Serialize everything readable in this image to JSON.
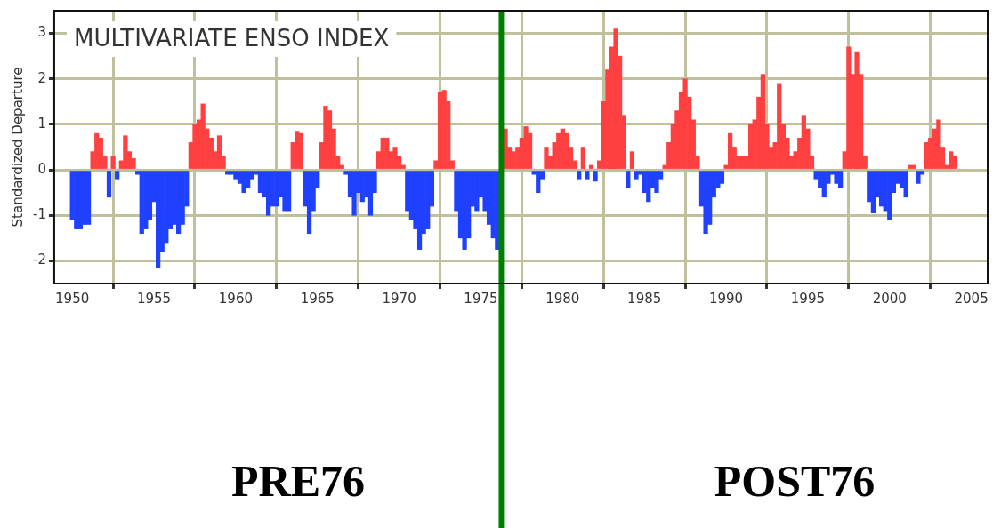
{
  "chart_data": {
    "type": "bar",
    "title": "MULTIVARIATE ENSO INDEX",
    "ylabel": "Standardized Departure",
    "annotations": [
      "PRE76",
      "POST76"
    ],
    "xlim": [
      1948.9,
      2006
    ],
    "xticks": [
      1950,
      1955,
      1960,
      1965,
      1970,
      1975,
      1980,
      1985,
      1990,
      1995,
      2000,
      2005
    ],
    "ylim": [
      -2.5,
      3.5
    ],
    "yticks": [
      -2,
      -1,
      0,
      1,
      2,
      3
    ],
    "grid": true,
    "legend": false,
    "ref_lines": [
      {
        "axis": "x",
        "value": 1976.25,
        "color": "#008000"
      }
    ],
    "series": [
      {
        "color": "#ff4040",
        "x": [
          1951.25,
          1951.5,
          1951.75,
          1952,
          1952.5,
          1953,
          1953.25,
          1953.5,
          1953.75,
          1957.25,
          1957.5,
          1957.75,
          1958,
          1958.25,
          1958.5,
          1958.75,
          1959,
          1959.25,
          1963.5,
          1963.75,
          1964,
          1965.25,
          1965.5,
          1965.75,
          1966,
          1966.25,
          1966.5,
          1968.75,
          1969,
          1969.25,
          1969.5,
          1969.75,
          1970,
          1970.25,
          1972.25,
          1972.5,
          1972.75,
          1973,
          1973.25,
          1976.5,
          1976.75,
          1977,
          1977.25,
          1977.5,
          1977.75,
          1978,
          1979,
          1979.25,
          1979.5,
          1979.75,
          1980,
          1980.25,
          1980.5,
          1980.75,
          1981.25,
          1981.75,
          1982.25,
          1982.5,
          1982.75,
          1983,
          1983.25,
          1983.5,
          1983.75,
          1984.25,
          1986.25,
          1986.5,
          1986.75,
          1987,
          1987.25,
          1987.5,
          1987.75,
          1988,
          1988.25,
          1990,
          1990.25,
          1990.5,
          1990.75,
          1991,
          1991.25,
          1991.5,
          1991.75,
          1992,
          1992.25,
          1992.5,
          1992.75,
          1993,
          1993.25,
          1993.5,
          1993.75,
          1994,
          1994.25,
          1994.5,
          1994.75,
          1995,
          1995.25,
          1997.25,
          1997.5,
          1997.75,
          1998,
          1998.25,
          1998.5,
          2001.25,
          2001.5,
          2002.25,
          2002.5,
          2002.75,
          2003,
          2003.25,
          2003.5,
          2003.75,
          2004
        ],
        "values": [
          0.4,
          0.8,
          0.7,
          0.3,
          0.3,
          0.2,
          0.75,
          0.4,
          0.25,
          0.6,
          1.0,
          1.1,
          1.45,
          0.9,
          0.7,
          0.4,
          0.75,
          0.3,
          0.6,
          0.85,
          0.8,
          0.6,
          1.4,
          1.3,
          0.9,
          0.3,
          0.1,
          0.4,
          0.7,
          0.7,
          0.4,
          0.5,
          0.3,
          0.1,
          0.2,
          1.7,
          1.75,
          1.5,
          0.2,
          0.9,
          0.5,
          0.4,
          0.5,
          0.7,
          0.95,
          0.8,
          0.5,
          0.3,
          0.6,
          0.8,
          0.9,
          0.8,
          0.5,
          0.2,
          0.5,
          0.1,
          0.2,
          1.5,
          2.2,
          2.7,
          3.1,
          2.5,
          1.2,
          0.4,
          0.1,
          0.6,
          1.0,
          1.3,
          1.7,
          2.0,
          1.6,
          1.1,
          0.3,
          0.1,
          0.8,
          0.5,
          0.3,
          0.3,
          0.3,
          1.0,
          1.1,
          1.6,
          2.1,
          1.0,
          0.5,
          0.6,
          1.9,
          1.0,
          0.7,
          0.3,
          0.4,
          0.7,
          1.2,
          0.9,
          0.3,
          0.4,
          2.7,
          2.1,
          2.6,
          2.1,
          0.3,
          0.1,
          0.1,
          0.6,
          0.7,
          0.9,
          1.1,
          0.5,
          0.1,
          0.4,
          0.3
        ]
      },
      {
        "color": "#2040ff",
        "x": [
          1950,
          1950.25,
          1950.5,
          1950.75,
          1951,
          1952.25,
          1952.75,
          1954,
          1954.25,
          1954.5,
          1954.75,
          1955,
          1955.25,
          1955.5,
          1955.75,
          1956,
          1956.25,
          1956.5,
          1956.75,
          1957,
          1959.5,
          1959.75,
          1960,
          1960.25,
          1960.5,
          1960.75,
          1961,
          1961.25,
          1961.5,
          1961.75,
          1962,
          1962.25,
          1962.5,
          1962.75,
          1963,
          1963.25,
          1964.25,
          1964.5,
          1964.75,
          1965,
          1966.75,
          1967,
          1967.25,
          1967.5,
          1967.75,
          1968,
          1968.25,
          1968.5,
          1970.5,
          1970.75,
          1971,
          1971.25,
          1971.5,
          1971.75,
          1972,
          1973.5,
          1973.75,
          1974,
          1974.25,
          1974.5,
          1974.75,
          1975,
          1975.25,
          1975.5,
          1975.75,
          1976,
          1978.25,
          1978.5,
          1978.75,
          1981,
          1981.5,
          1982,
          1984,
          1984.5,
          1984.75,
          1985,
          1985.25,
          1985.5,
          1985.75,
          1986,
          1988.5,
          1988.75,
          1989,
          1989.25,
          1989.5,
          1989.75,
          1995.5,
          1995.75,
          1996,
          1996.25,
          1996.5,
          1996.75,
          1997,
          1998.75,
          1999,
          1999.25,
          1999.5,
          1999.75,
          2000,
          2000.25,
          2000.5,
          2000.75,
          2001,
          2001.75,
          2002
        ],
        "values": [
          -1.1,
          -1.3,
          -1.3,
          -1.2,
          -1.2,
          -0.6,
          -0.2,
          -0.1,
          -1.4,
          -1.3,
          -1.1,
          -0.7,
          -2.15,
          -1.8,
          -1.6,
          -1.3,
          -1.2,
          -1.4,
          -1.2,
          -0.8,
          -0.1,
          -0.1,
          -0.2,
          -0.3,
          -0.5,
          -0.4,
          -0.2,
          -0.1,
          -0.5,
          -0.6,
          -1.0,
          -0.8,
          -0.8,
          -0.6,
          -0.9,
          -0.9,
          -0.8,
          -1.4,
          -0.9,
          -0.4,
          -0.1,
          -0.6,
          -1.0,
          -0.5,
          -0.7,
          -0.6,
          -1.0,
          -0.5,
          -0.9,
          -1.1,
          -1.3,
          -1.75,
          -1.4,
          -1.3,
          -0.8,
          -0.9,
          -1.5,
          -1.75,
          -1.5,
          -0.8,
          -0.9,
          -0.6,
          -0.9,
          -1.2,
          -1.5,
          -1.75,
          -0.1,
          -0.5,
          -0.2,
          -0.2,
          -0.2,
          -0.25,
          -0.4,
          -0.2,
          -0.1,
          -0.5,
          -0.7,
          -0.4,
          -0.5,
          -0.2,
          -0.8,
          -1.4,
          -1.2,
          -0.6,
          -0.4,
          -0.3,
          -0.2,
          -0.4,
          -0.6,
          -0.3,
          -0.1,
          -0.3,
          -0.4,
          -0.7,
          -0.95,
          -0.6,
          -0.8,
          -0.9,
          -1.1,
          -0.5,
          -0.3,
          -0.4,
          -0.6,
          -0.3,
          -0.1
        ]
      }
    ]
  }
}
